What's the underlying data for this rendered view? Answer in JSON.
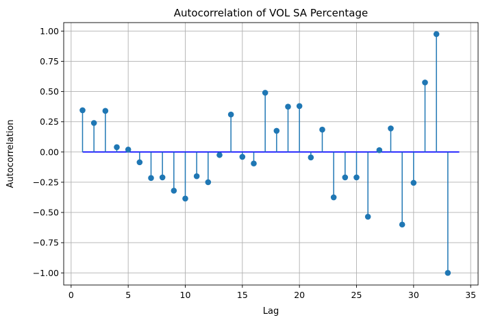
{
  "chart_data": {
    "type": "stem",
    "title": "Autocorrelation of VOL SA Percentage",
    "xlabel": "Lag",
    "ylabel": "Autocorrelation",
    "xlim": [
      -0.65,
      35.65
    ],
    "ylim": [
      -1.1,
      1.07
    ],
    "xticks": [
      0,
      5,
      10,
      15,
      20,
      25,
      30,
      35
    ],
    "yticks": [
      -1.0,
      -0.75,
      -0.5,
      -0.25,
      0.0,
      0.25,
      0.5,
      0.75,
      1.0
    ],
    "ytick_labels": [
      "−1.00",
      "−0.75",
      "−0.50",
      "−0.25",
      "0.00",
      "0.25",
      "0.50",
      "0.75",
      "1.00"
    ],
    "grid": true,
    "baseline": {
      "from": 1,
      "to": 34,
      "y": 0,
      "color": "#0000ff"
    },
    "stem_color": "#1f77b4",
    "x": [
      1,
      2,
      3,
      4,
      5,
      6,
      7,
      8,
      9,
      10,
      11,
      12,
      13,
      14,
      15,
      16,
      17,
      18,
      19,
      20,
      21,
      22,
      23,
      24,
      25,
      26,
      27,
      28,
      29,
      30,
      31,
      32,
      33
    ],
    "values": [
      0.345,
      0.24,
      0.34,
      0.04,
      0.02,
      -0.085,
      -0.215,
      -0.21,
      -0.32,
      -0.385,
      -0.2,
      -0.25,
      -0.025,
      0.31,
      -0.04,
      -0.095,
      0.49,
      0.175,
      0.375,
      0.38,
      -0.045,
      0.185,
      -0.375,
      -0.21,
      -0.21,
      -0.535,
      0.015,
      0.195,
      -0.6,
      -0.255,
      0.575,
      0.975,
      -1.0
    ]
  }
}
